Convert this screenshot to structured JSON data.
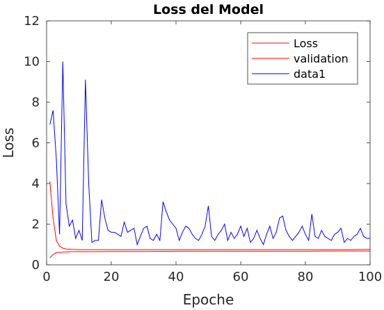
{
  "chart_data": {
    "type": "line",
    "title": "Loss del Model",
    "xlabel": "Epoche",
    "ylabel": "Loss",
    "xlim": [
      0,
      100
    ],
    "ylim": [
      0,
      12
    ],
    "xticks": [
      0,
      20,
      40,
      60,
      80,
      100
    ],
    "yticks": [
      0,
      2,
      4,
      6,
      8,
      10,
      12
    ],
    "xtick_labels": [
      "0",
      "20",
      "40",
      "60",
      "80",
      "100"
    ],
    "ytick_labels": [
      "0",
      "2",
      "4",
      "6",
      "8",
      "10",
      "12"
    ],
    "grid": false,
    "legend_position": "top-right",
    "series": [
      {
        "name": "Loss",
        "color": "#ff0000",
        "x": [
          1,
          2,
          3,
          4,
          5,
          6,
          8,
          10,
          15,
          20,
          30,
          40,
          50,
          60,
          70,
          80,
          90,
          100
        ],
        "y": [
          4.1,
          2.3,
          1.2,
          0.92,
          0.82,
          0.78,
          0.76,
          0.75,
          0.75,
          0.75,
          0.75,
          0.75,
          0.75,
          0.75,
          0.75,
          0.75,
          0.75,
          0.76
        ]
      },
      {
        "name": "validation",
        "color": "#ff0000",
        "x": [
          1,
          2,
          3,
          5,
          8,
          10,
          15,
          20,
          30,
          40,
          50,
          60,
          70,
          80,
          90,
          100
        ],
        "y": [
          0.35,
          0.5,
          0.6,
          0.62,
          0.65,
          0.65,
          0.65,
          0.66,
          0.66,
          0.67,
          0.67,
          0.67,
          0.67,
          0.67,
          0.68,
          0.68
        ]
      },
      {
        "name": "data1",
        "color": "#0000ff",
        "x": [
          1,
          2,
          3,
          4,
          5,
          6,
          7,
          8,
          9,
          10,
          11,
          12,
          13,
          14,
          15,
          16,
          17,
          18,
          19,
          20,
          21,
          22,
          23,
          24,
          25,
          26,
          27,
          28,
          29,
          30,
          31,
          32,
          33,
          34,
          35,
          36,
          37,
          38,
          39,
          40,
          41,
          42,
          43,
          44,
          45,
          46,
          47,
          48,
          49,
          50,
          51,
          52,
          53,
          54,
          55,
          56,
          57,
          58,
          59,
          60,
          61,
          62,
          63,
          64,
          65,
          66,
          67,
          68,
          69,
          70,
          71,
          72,
          73,
          74,
          75,
          76,
          77,
          78,
          79,
          80,
          81,
          82,
          83,
          84,
          85,
          86,
          87,
          88,
          89,
          90,
          91,
          92,
          93,
          94,
          95,
          96,
          97,
          98,
          99,
          100
        ],
        "y": [
          6.9,
          7.6,
          5.2,
          1.5,
          10.0,
          3.0,
          1.9,
          2.2,
          1.3,
          1.7,
          1.2,
          9.1,
          4.0,
          1.1,
          1.2,
          1.2,
          3.2,
          2.3,
          1.7,
          1.6,
          1.6,
          1.5,
          1.4,
          2.1,
          1.6,
          1.7,
          1.8,
          1.0,
          1.4,
          1.8,
          1.9,
          1.3,
          1.2,
          1.5,
          1.2,
          3.1,
          2.6,
          2.2,
          2.0,
          1.8,
          1.2,
          1.6,
          1.9,
          1.8,
          1.5,
          1.3,
          1.2,
          1.5,
          1.9,
          2.9,
          1.4,
          1.2,
          1.5,
          1.7,
          2.0,
          1.2,
          1.6,
          1.3,
          1.5,
          1.9,
          1.4,
          1.8,
          1.1,
          1.3,
          1.7,
          1.3,
          1.0,
          1.5,
          1.9,
          1.3,
          1.6,
          2.3,
          2.4,
          1.7,
          1.4,
          1.2,
          1.4,
          1.6,
          1.9,
          1.5,
          1.2,
          2.5,
          1.4,
          1.3,
          1.7,
          1.4,
          1.3,
          1.2,
          1.5,
          1.6,
          1.8,
          1.1,
          1.3,
          1.2,
          1.4,
          1.5,
          1.8,
          1.4,
          1.3,
          1.3
        ]
      }
    ]
  }
}
